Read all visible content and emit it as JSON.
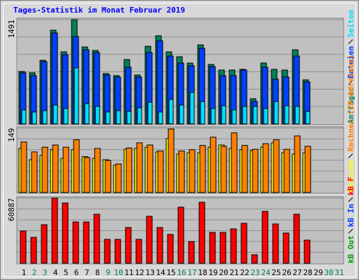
{
  "chart_data": [
    {
      "type": "bar",
      "title": "Tages-Statistik im Monat Februar 2019",
      "ylim": [
        0,
        1491
      ],
      "yticks": [
        1491
      ],
      "grid": true,
      "series": [
        {
          "name": "Anfragen",
          "color": "#00805c",
          "values": [
            750,
            730,
            910,
            1340,
            1030,
            1491,
            1100,
            1050,
            720,
            690,
            920,
            700,
            1110,
            1260,
            1030,
            960,
            870,
            1130,
            850,
            770,
            770,
            780,
            360,
            870,
            780,
            770,
            1060,
            630,
            null,
            null,
            null
          ]
        },
        {
          "name": "Dateien",
          "color": "#0040ff",
          "values": [
            730,
            690,
            890,
            1300,
            990,
            1250,
            1060,
            1020,
            700,
            670,
            810,
            670,
            1020,
            1190,
            970,
            870,
            830,
            1080,
            820,
            690,
            690,
            770,
            320,
            810,
            640,
            670,
            970,
            600,
            null,
            null,
            null
          ]
        },
        {
          "name": "Seiten",
          "color": "#00e0ff",
          "values": [
            200,
            170,
            190,
            270,
            220,
            800,
            290,
            250,
            170,
            190,
            180,
            230,
            310,
            170,
            350,
            270,
            450,
            320,
            220,
            260,
            200,
            250,
            250,
            220,
            320,
            260,
            250,
            180,
            null,
            null,
            null
          ]
        }
      ]
    },
    {
      "type": "bar",
      "ylim": [
        0,
        149
      ],
      "yticks": [
        149
      ],
      "grid": true,
      "series": [
        {
          "name": "Besuche",
          "color": "#ffff00",
          "values": [
            102,
            76,
            86,
            99,
            79,
            99,
            83,
            79,
            76,
            63,
            100,
            102,
            105,
            94,
            125,
            89,
            92,
            92,
            105,
            110,
            102,
            99,
            97,
            105,
            115,
            92,
            89,
            92,
            null,
            null,
            null
          ]
        },
        {
          "name": "Rechner (IP-Adressen)",
          "color": "#ff8000",
          "values": [
            117,
            94,
            105,
            110,
            105,
            122,
            81,
            102,
            74,
            66,
            103,
            115,
            110,
            96,
            147,
            96,
            99,
            109,
            128,
            107,
            138,
            109,
            100,
            113,
            122,
            100,
            131,
            107,
            null,
            null,
            null
          ]
        }
      ]
    },
    {
      "type": "bar",
      "ylim": [
        0,
        60887
      ],
      "yticks": [
        60887
      ],
      "grid": true,
      "categories": [
        "1",
        "2",
        "3",
        "4",
        "5",
        "6",
        "7",
        "8",
        "9",
        "10",
        "11",
        "12",
        "13",
        "14",
        "15",
        "16",
        "17",
        "18",
        "19",
        "20",
        "21",
        "22",
        "23",
        "24",
        "25",
        "26",
        "27",
        "28",
        "29",
        "30",
        "31"
      ],
      "label_colors": [
        "#000000",
        "#008040",
        "#008040",
        "#000000",
        "#000000",
        "#000000",
        "#000000",
        "#000000",
        "#008040",
        "#008040",
        "#000000",
        "#000000",
        "#000000",
        "#000000",
        "#000000",
        "#008040",
        "#008040",
        "#000000",
        "#000000",
        "#000000",
        "#000000",
        "#000000",
        "#008040",
        "#008040",
        "#000000",
        "#000000",
        "#000000",
        "#000000",
        "#000000",
        "#008040",
        "#008040"
      ],
      "series": [
        {
          "name": "kB F",
          "color": "#ff0000",
          "values": [
            30100,
            24200,
            36000,
            60887,
            56300,
            38600,
            38600,
            45800,
            22300,
            22300,
            33400,
            22300,
            43900,
            33400,
            26900,
            52400,
            20300,
            57000,
            28800,
            28800,
            32100,
            37300,
            7900,
            48500,
            36700,
            28200,
            45800,
            21600,
            null,
            null,
            null
          ]
        }
      ],
      "extra_legend": [
        {
          "name": "kB In",
          "color": "#0040ff"
        },
        {
          "name": "kB Out",
          "color": "#00a000"
        }
      ]
    }
  ]
}
